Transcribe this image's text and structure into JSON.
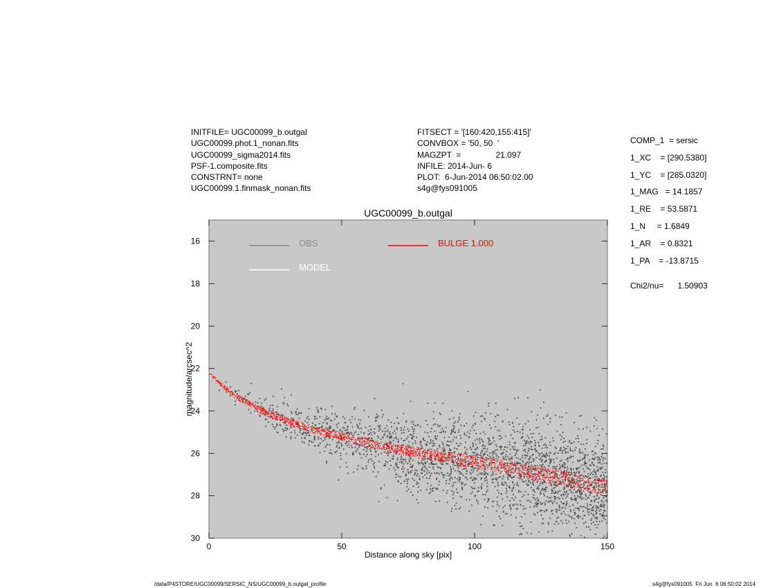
{
  "header": {
    "left": [
      "INITFILE= UGC00099_b.outgal",
      "UGC00099.phot.1_nonan.fits",
      "UGC00099_sigma2014.fits",
      "PSF-1.composite.fits",
      "CONSTRNT= none",
      "UGC00099.1.finmask_nonan.fits"
    ],
    "middle": [
      "FITSECT = '[160:420,155:415]'",
      "CONVBOX = '50, 50  '",
      "MAGZPT  =               21.097",
      "INFILE: 2014-Jun- 6",
      "PLOT:  6-Jun-2014 06:50:02.00",
      "s4g@fys091005"
    ],
    "params": [
      "COMP_1  = sersic",
      "1_XC    = [290.5380]",
      "1_YC    = [285.0320]",
      "1_MAG   = 14.1857",
      "1_RE    = 53.5871",
      "1_N     = 1.6849",
      "1_AR    = 0.8321",
      "1_PA    = -13.8715"
    ],
    "chi2": "Chi2/nu=      1.50903"
  },
  "footer": {
    "left": "/data/P4STORE/UGC00099/SERSIC_NS/UGC00099_b.outgal_profile",
    "right": "s4g@fys091005  Fri Jun  6 06:50:02 2014"
  },
  "chart_data": {
    "type": "scatter",
    "title": "UGC00099_b.outgal",
    "xlabel": "Distance along sky [pix]",
    "ylabel": "magnitude/arcsec^2",
    "xlim": [
      0,
      150
    ],
    "ylim": [
      30,
      15
    ],
    "y_inverted": true,
    "x_ticks": [
      0,
      50,
      100,
      150
    ],
    "y_ticks": [
      16,
      18,
      20,
      22,
      24,
      26,
      28,
      30
    ],
    "grid": false,
    "plot_background": "#c8c8c8",
    "legend": [
      {
        "name": "OBS",
        "color": "#8a8a8a",
        "position": "top-left"
      },
      {
        "name": "MODEL",
        "color": "#ffffff",
        "position": "top-left"
      },
      {
        "name": "BULGE  1.000",
        "color": "#ff0000",
        "position": "top-center"
      }
    ],
    "series": [
      {
        "name": "OBS",
        "color": "#4a4a4a",
        "profile_x": [
          0,
          5,
          10,
          20,
          30,
          40,
          50,
          60,
          70,
          80,
          90,
          100,
          110,
          120,
          130,
          140,
          150
        ],
        "profile_y": [
          22.2,
          22.8,
          23.3,
          24.0,
          24.5,
          24.9,
          25.2,
          25.5,
          25.8,
          26.0,
          26.2,
          26.4,
          26.6,
          26.9,
          27.1,
          27.4,
          27.6
        ],
        "scatter_sigma_mag": [
          0.05,
          0.15,
          0.2,
          0.35,
          0.45,
          0.55,
          0.7,
          0.8,
          0.9,
          1.0,
          1.05,
          1.1,
          1.15,
          1.2,
          1.2,
          1.2,
          1.2
        ],
        "n_points": 2600
      },
      {
        "name": "BULGE  1.000",
        "color": "#ff0000",
        "profile_x": [
          0,
          5,
          10,
          20,
          30,
          40,
          50,
          60,
          70,
          80,
          90,
          100,
          110,
          120,
          130,
          140,
          150
        ],
        "profile_y": [
          22.2,
          22.8,
          23.3,
          24.0,
          24.5,
          24.9,
          25.2,
          25.5,
          25.8,
          26.0,
          26.2,
          26.4,
          26.6,
          26.9,
          27.1,
          27.4,
          27.6
        ],
        "band_halfwidth_mag": [
          0.02,
          0.08,
          0.12,
          0.15,
          0.16,
          0.17,
          0.18,
          0.2,
          0.22,
          0.25,
          0.27,
          0.3,
          0.32,
          0.34,
          0.35,
          0.36,
          0.38
        ],
        "n_points": 3200
      }
    ]
  }
}
